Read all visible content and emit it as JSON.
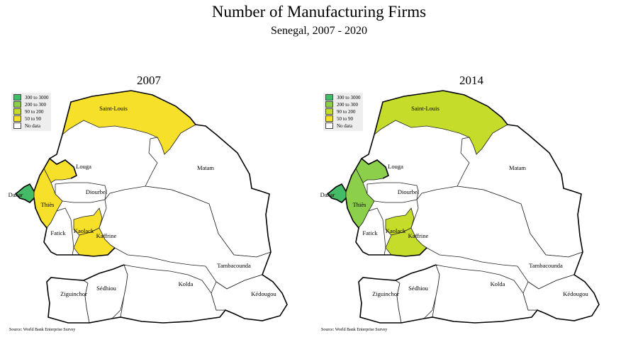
{
  "title": "Number of Manufacturing Firms",
  "subtitle": "Senegal, 2007 - 2020",
  "legend": [
    {
      "label": "300 to 3000",
      "color": "#44bb66"
    },
    {
      "label": "200 to 300",
      "color": "#8ccf4a"
    },
    {
      "label": "90 to 200",
      "color": "#c6dc2b"
    },
    {
      "label": "50 to 90",
      "color": "#f6e02a"
    },
    {
      "label": "No data",
      "color": "#ffffff"
    }
  ],
  "source": "Source: World Bank Enterprise Survey",
  "region_names": [
    "Saint-Louis",
    "Louga",
    "Matam",
    "Dakar",
    "Diourbel",
    "Thiès",
    "Fatick",
    "Kaolack",
    "Kaffrine",
    "Tambacounda",
    "Ziguinchor",
    "Sédhiou",
    "Kolda",
    "Kédougou"
  ],
  "maps": [
    {
      "year": "2007",
      "fills": {
        "Saint-Louis": "50 to 90",
        "Louga": "50 to 90",
        "Matam": "No data",
        "Dakar": "300 to 3000",
        "Diourbel": "No data",
        "Thiès": "50 to 90",
        "Fatick": "No data",
        "Kaolack": "50 to 90",
        "Kaffrine": "50 to 90",
        "Tambacounda": "No data",
        "Ziguinchor": "No data",
        "Sédhiou": "No data",
        "Kolda": "No data",
        "Kédougou": "No data"
      }
    },
    {
      "year": "2014",
      "fills": {
        "Saint-Louis": "90 to 200",
        "Louga": "200 to 300",
        "Matam": "No data",
        "Dakar": "300 to 3000",
        "Diourbel": "No data",
        "Thiès": "200 to 300",
        "Fatick": "No data",
        "Kaolack": "90 to 200",
        "Kaffrine": "90 to 200",
        "Tambacounda": "No data",
        "Ziguinchor": "No data",
        "Sédhiou": "No data",
        "Kolda": "No data",
        "Kédougou": "No data"
      }
    }
  ]
}
